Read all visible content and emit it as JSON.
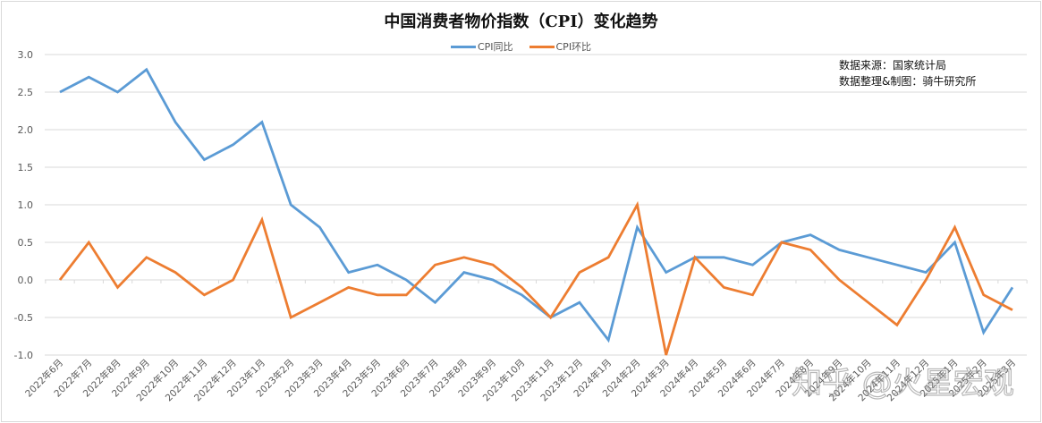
{
  "chart_data": {
    "type": "line",
    "title": "中国消费者物价指数（CPI）变化趋势",
    "xlabel": "",
    "ylabel": "",
    "ylim": [
      -1.0,
      3.0
    ],
    "yticks": [
      "3.0",
      "2.5",
      "2.0",
      "1.5",
      "1.0",
      "0.5",
      "0.0",
      "-0.5",
      "-1.0"
    ],
    "grid": true,
    "legend_position": "top",
    "categories": [
      "2022年6月",
      "2022年7月",
      "2022年8月",
      "2022年9月",
      "2022年10月",
      "2022年11月",
      "2022年12月",
      "2023年1月",
      "2023年2月",
      "2023年3月",
      "2023年4月",
      "2023年5月",
      "2023年6月",
      "2023年7月",
      "2023年8月",
      "2023年9月",
      "2023年10月",
      "2023年11月",
      "2023年12月",
      "2024年1月",
      "2024年2月",
      "2024年3月",
      "2024年4月",
      "2024年5月",
      "2024年6月",
      "2024年7月",
      "2024年8月",
      "2024年9月",
      "2024年10月",
      "2024年11月",
      "2024年12月",
      "2025年1月",
      "2025年2月",
      "2025年3月"
    ],
    "series": [
      {
        "name": "CPI同比",
        "color": "#5b9bd5",
        "values": [
          2.5,
          2.7,
          2.5,
          2.8,
          2.1,
          1.6,
          1.8,
          2.1,
          1.0,
          0.7,
          0.1,
          0.2,
          0.0,
          -0.3,
          0.1,
          0.0,
          -0.2,
          -0.5,
          -0.3,
          -0.8,
          0.7,
          0.1,
          0.3,
          0.3,
          0.2,
          0.5,
          0.6,
          0.4,
          0.3,
          0.2,
          0.1,
          0.5,
          -0.7,
          -0.1
        ]
      },
      {
        "name": "CPI环比",
        "color": "#ed7d31",
        "values": [
          0.0,
          0.5,
          -0.1,
          0.3,
          0.1,
          -0.2,
          0.0,
          0.8,
          -0.5,
          -0.3,
          -0.1,
          -0.2,
          -0.2,
          0.2,
          0.3,
          0.2,
          -0.1,
          -0.5,
          0.1,
          0.3,
          1.0,
          -1.0,
          0.3,
          -0.1,
          -0.2,
          0.5,
          0.4,
          0.0,
          -0.3,
          -0.6,
          0.0,
          0.7,
          -0.2,
          -0.4
        ]
      }
    ],
    "annotations": [
      "数据来源：国家统计局",
      "数据整理&制图：骑牛研究所"
    ]
  },
  "header": {
    "title": "中国消费者物价指数（CPI）变化趋势"
  },
  "legend": [
    {
      "label": "CPI同比",
      "color": "#5b9bd5"
    },
    {
      "label": "CPI环比",
      "color": "#ed7d31"
    }
  ],
  "notes": {
    "source": "数据来源：国家统计局",
    "credit": "数据整理&制图：骑牛研究所"
  },
  "watermark": "知乎 @火星宏观"
}
